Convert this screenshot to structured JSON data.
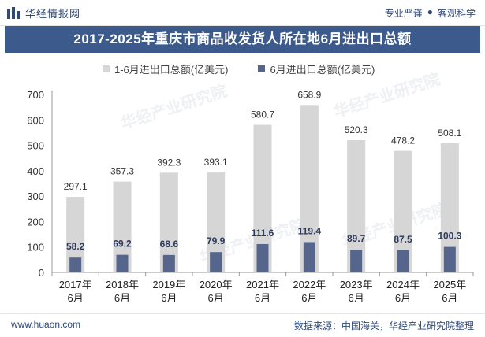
{
  "header": {
    "brand": "华经情报网",
    "slogan_left": "专业严谨",
    "slogan_right": "客观科学"
  },
  "chart_data": {
    "type": "bar",
    "title": "2017-2025年重庆市商品收发货人所在地6月进出口总额",
    "categories": [
      [
        "2017年",
        "6月"
      ],
      [
        "2018年",
        "6月"
      ],
      [
        "2019年",
        "6月"
      ],
      [
        "2020年",
        "6月"
      ],
      [
        "2021年",
        "6月"
      ],
      [
        "2022年",
        "6月"
      ],
      [
        "2023年",
        "6月"
      ],
      [
        "2024年",
        "6月"
      ],
      [
        "2025年",
        "6月"
      ]
    ],
    "series": [
      {
        "name": "1-6月进出口总额(亿美元)",
        "color": "#d6d6d6",
        "values": [
          297.1,
          357.3,
          392.3,
          393.1,
          580.7,
          658.9,
          520.3,
          478.2,
          508.1
        ]
      },
      {
        "name": "6月进出口总额(亿美元)",
        "color": "#55658c",
        "values": [
          58.2,
          69.2,
          68.6,
          79.9,
          111.6,
          119.4,
          89.7,
          87.5,
          100.3
        ]
      }
    ],
    "ylim": [
      0,
      700
    ],
    "yticks": [
      0,
      100,
      200,
      300,
      400,
      500,
      600,
      700
    ],
    "legend": "top"
  },
  "watermark": "华经产业研究院",
  "footer": {
    "site": "www.huaon.com",
    "source": "数据来源：中国海关，华经产业研究院整理"
  }
}
